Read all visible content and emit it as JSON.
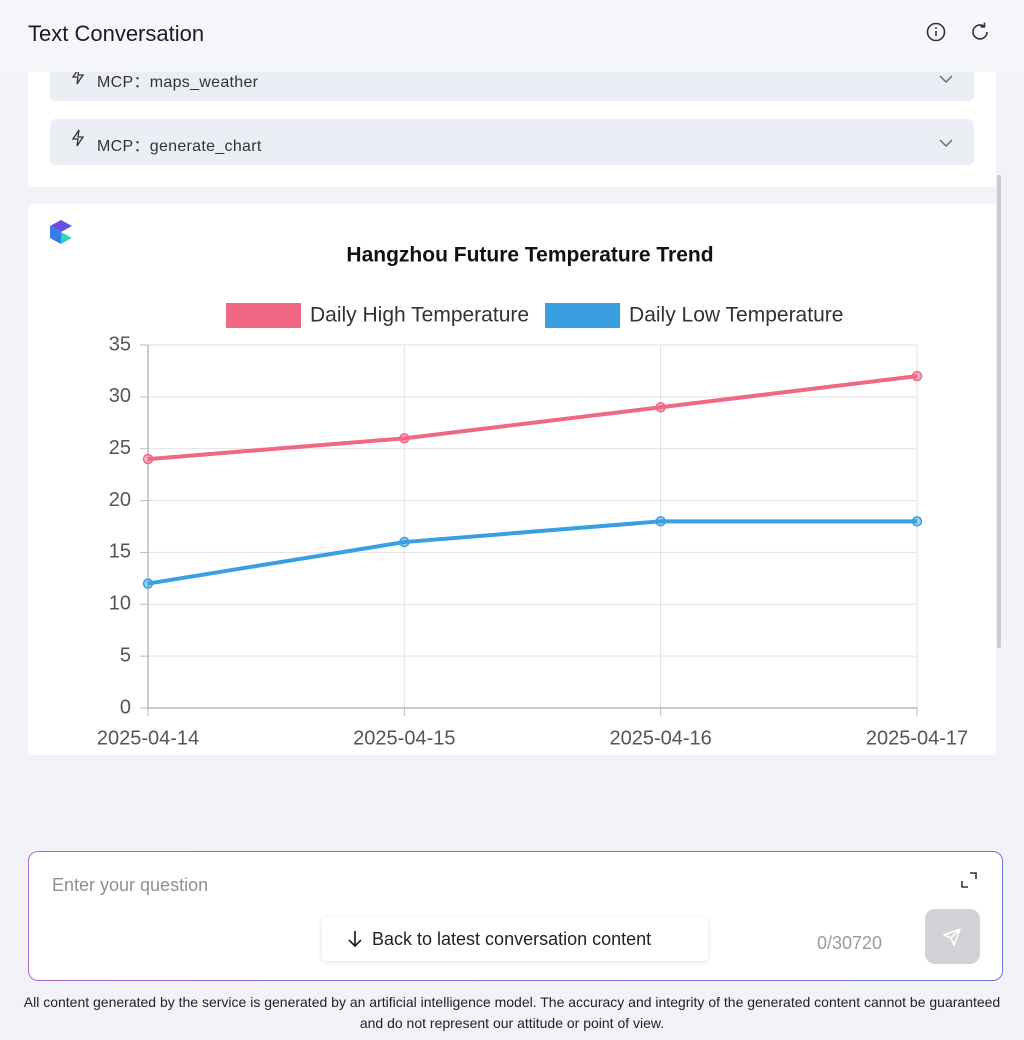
{
  "header": {
    "title": "Text Conversation"
  },
  "tools": [
    "MCP：maps_weather",
    "MCP：generate_chart"
  ],
  "chart_data": {
    "type": "line",
    "title": "Hangzhou Future Temperature Trend",
    "categories": [
      "2025-04-14",
      "2025-04-15",
      "2025-04-16",
      "2025-04-17"
    ],
    "series": [
      {
        "name": "Daily High Temperature",
        "color": "#f06884",
        "values": [
          24,
          26,
          29,
          32
        ]
      },
      {
        "name": "Daily Low Temperature",
        "color": "#3a9fe0",
        "values": [
          12,
          16,
          18,
          18
        ]
      }
    ],
    "ylim": [
      0,
      35
    ],
    "yticks": [
      0,
      5,
      10,
      15,
      20,
      25,
      30,
      35
    ],
    "grid": true,
    "legend": "top"
  },
  "input": {
    "placeholder": "Enter your question",
    "back_button": "Back to latest conversation content",
    "counter": "0/30720"
  },
  "footer": {
    "disclaimer": "All content generated by the service is generated by an artificial intelligence model. The accuracy and integrity of the generated content cannot be guaranteed and do not represent our attitude or point of view."
  }
}
